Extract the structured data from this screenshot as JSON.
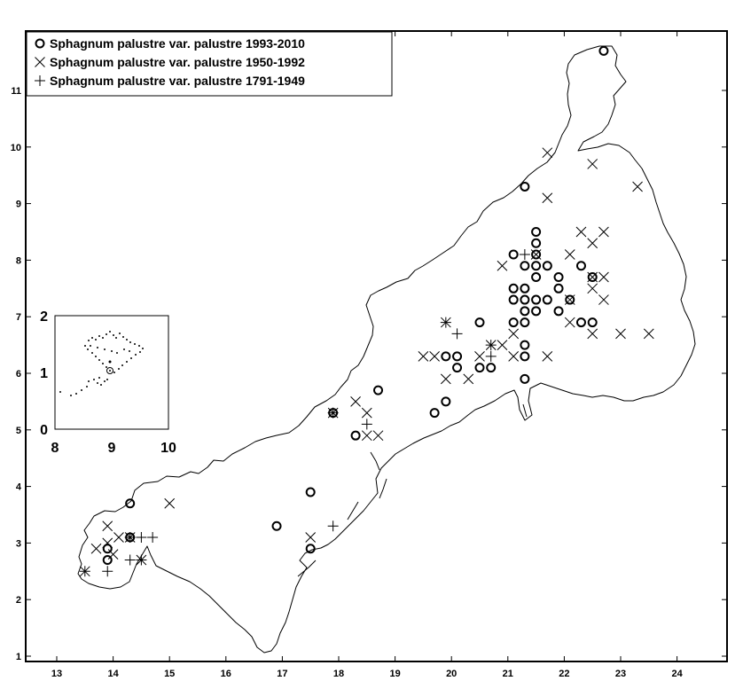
{
  "chart_data": {
    "type": "scatter",
    "title": "",
    "xlabel": "",
    "ylabel": "",
    "xlim": [
      12.5,
      24.9
    ],
    "ylim": [
      0.9,
      12.0
    ],
    "x_ticks": [
      "13",
      "14",
      "15",
      "16",
      "17",
      "18",
      "19",
      "20",
      "21",
      "22",
      "23",
      "24"
    ],
    "y_ticks": [
      "1",
      "2",
      "3",
      "4",
      "5",
      "6",
      "7",
      "8",
      "9",
      "10",
      "11"
    ],
    "legend_position": "top-left",
    "series": [
      {
        "name": "Sphagnum palustre var. palustre 1993-2010",
        "marker": "circle",
        "points": [
          [
            22.7,
            11.7
          ],
          [
            21.3,
            9.3
          ],
          [
            21.5,
            8.5
          ],
          [
            21.5,
            8.3
          ],
          [
            21.1,
            8.1
          ],
          [
            21.5,
            8.1
          ],
          [
            21.3,
            7.9
          ],
          [
            21.5,
            7.9
          ],
          [
            21.7,
            7.9
          ],
          [
            22.3,
            7.9
          ],
          [
            21.5,
            7.7
          ],
          [
            21.9,
            7.7
          ],
          [
            22.5,
            7.7
          ],
          [
            21.1,
            7.5
          ],
          [
            21.3,
            7.5
          ],
          [
            21.9,
            7.5
          ],
          [
            21.1,
            7.3
          ],
          [
            21.3,
            7.3
          ],
          [
            21.5,
            7.3
          ],
          [
            21.7,
            7.3
          ],
          [
            22.1,
            7.3
          ],
          [
            21.3,
            7.1
          ],
          [
            21.5,
            7.1
          ],
          [
            21.9,
            7.1
          ],
          [
            21.1,
            6.9
          ],
          [
            21.3,
            6.9
          ],
          [
            22.3,
            6.9
          ],
          [
            22.5,
            6.9
          ],
          [
            20.5,
            6.9
          ],
          [
            21.3,
            6.5
          ],
          [
            19.9,
            6.3
          ],
          [
            20.1,
            6.3
          ],
          [
            21.3,
            6.3
          ],
          [
            20.1,
            6.1
          ],
          [
            20.5,
            6.1
          ],
          [
            20.7,
            6.1
          ],
          [
            21.3,
            5.9
          ],
          [
            18.7,
            5.7
          ],
          [
            19.9,
            5.5
          ],
          [
            19.7,
            5.3
          ],
          [
            17.9,
            5.3
          ],
          [
            18.3,
            4.9
          ],
          [
            17.5,
            3.9
          ],
          [
            14.3,
            3.7
          ],
          [
            16.9,
            3.3
          ],
          [
            14.3,
            3.1
          ],
          [
            13.9,
            2.9
          ],
          [
            17.5,
            2.9
          ],
          [
            13.9,
            2.7
          ]
        ]
      },
      {
        "name": "Sphagnum palustre var. palustre 1950-1992",
        "marker": "x",
        "points": [
          [
            21.7,
            9.9
          ],
          [
            22.5,
            9.7
          ],
          [
            23.3,
            9.3
          ],
          [
            21.7,
            9.1
          ],
          [
            22.3,
            8.5
          ],
          [
            22.7,
            8.5
          ],
          [
            22.5,
            8.3
          ],
          [
            22.1,
            8.1
          ],
          [
            21.5,
            8.1
          ],
          [
            20.9,
            7.9
          ],
          [
            22.7,
            7.7
          ],
          [
            22.5,
            7.5
          ],
          [
            22.7,
            7.3
          ],
          [
            22.1,
            6.9
          ],
          [
            22.5,
            6.7
          ],
          [
            23.0,
            6.7
          ],
          [
            23.5,
            6.7
          ],
          [
            21.1,
            6.7
          ],
          [
            20.9,
            6.5
          ],
          [
            19.5,
            6.3
          ],
          [
            19.7,
            6.3
          ],
          [
            20.5,
            6.3
          ],
          [
            21.1,
            6.3
          ],
          [
            21.7,
            6.3
          ],
          [
            19.9,
            5.9
          ],
          [
            20.3,
            5.9
          ],
          [
            18.3,
            5.5
          ],
          [
            18.5,
            5.3
          ],
          [
            18.5,
            4.9
          ],
          [
            18.7,
            4.9
          ],
          [
            15.0,
            3.7
          ],
          [
            13.9,
            3.3
          ],
          [
            14.1,
            3.1
          ],
          [
            17.5,
            3.1
          ],
          [
            14.3,
            3.1
          ],
          [
            13.7,
            2.9
          ],
          [
            13.5,
            2.5
          ],
          [
            13.9,
            3.0
          ],
          [
            14.0,
            2.8
          ],
          [
            17.9,
            5.3
          ],
          [
            22.5,
            7.7
          ],
          [
            22.1,
            7.3
          ],
          [
            19.9,
            6.9
          ],
          [
            20.7,
            6.5
          ],
          [
            14.5,
            2.7
          ]
        ]
      },
      {
        "name": "Sphagnum palustre var. palustre 1791-1949",
        "marker": "plus",
        "points": [
          [
            21.3,
            8.1
          ],
          [
            19.9,
            6.9
          ],
          [
            20.1,
            6.7
          ],
          [
            20.7,
            6.5
          ],
          [
            20.7,
            6.3
          ],
          [
            18.5,
            5.1
          ],
          [
            17.9,
            5.3
          ],
          [
            17.9,
            3.3
          ],
          [
            14.3,
            3.1
          ],
          [
            14.5,
            3.1
          ],
          [
            14.7,
            3.1
          ],
          [
            14.3,
            2.7
          ],
          [
            14.5,
            2.7
          ],
          [
            13.9,
            2.5
          ],
          [
            13.5,
            2.5
          ]
        ]
      }
    ]
  },
  "inset": {
    "x_ticks": [
      "8",
      "9",
      "10"
    ],
    "y_ticks": [
      "0",
      "1",
      "2"
    ]
  }
}
